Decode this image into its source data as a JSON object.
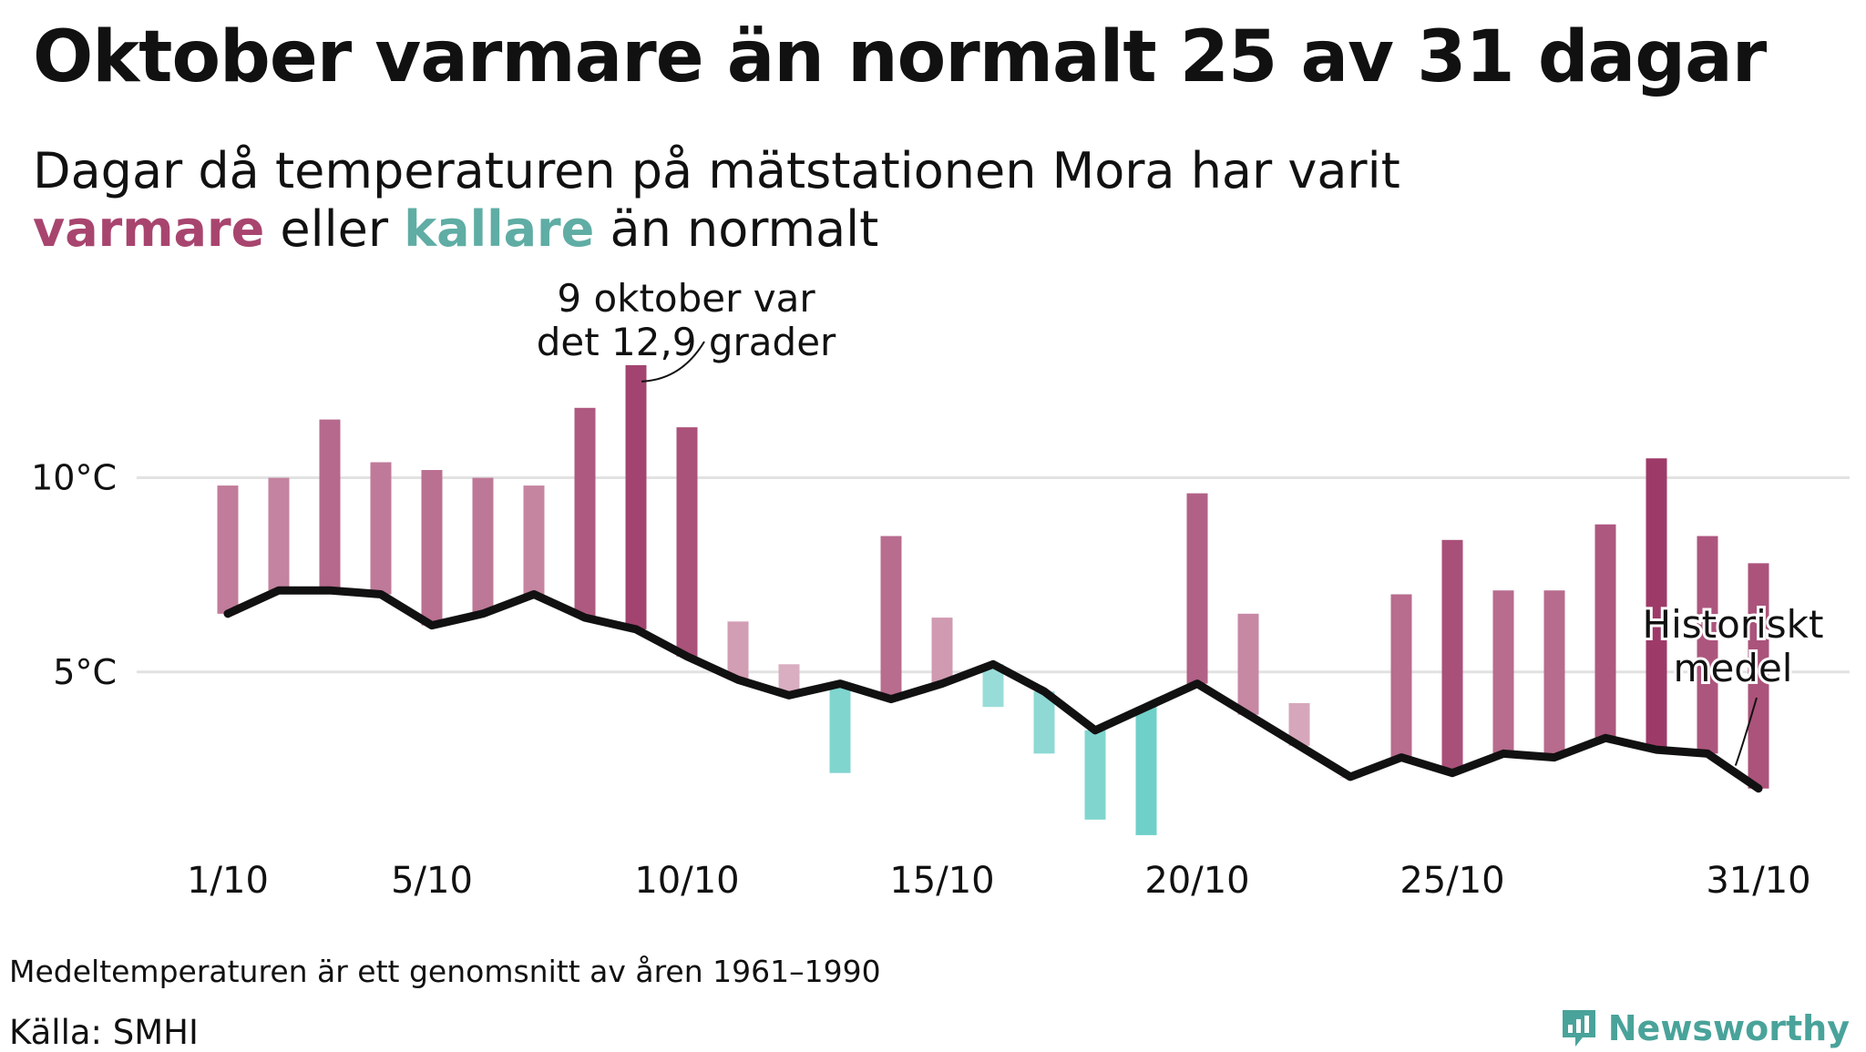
{
  "title": "Oktober varmare än normalt 25 av 31 dagar",
  "subtitle": {
    "line1": "Dagar då temperaturen på mätstationen Mora har varit",
    "warm_word": "varmare",
    "middle_word": "eller",
    "cold_word": "kallare",
    "end_words": "än normalt"
  },
  "footnote": "Medeltemperaturen är ett genomsnitt av åren 1961–1990",
  "source": "Källa: SMHI",
  "brand": "Newsworthy",
  "colors": {
    "warm_dark": "#9e3a68",
    "warm_light": "#e8c9d5",
    "cold_dark": "#6fd0c9",
    "cold_light": "#b8e6e3",
    "line": "#111111",
    "grid": "#e2e2e2",
    "brand": "#49a39a"
  },
  "chart_data": {
    "type": "bar",
    "title": "Oktober varmare än normalt 25 av 31 dagar",
    "xlabel": "",
    "ylabel": "",
    "ylim": [
      -1.5,
      15.5
    ],
    "grid": true,
    "days": [
      1,
      2,
      3,
      4,
      5,
      6,
      7,
      8,
      9,
      10,
      11,
      12,
      13,
      14,
      15,
      16,
      17,
      18,
      19,
      20,
      21,
      22,
      23,
      24,
      25,
      26,
      27,
      28,
      29,
      30,
      31
    ],
    "x_tick_days": [
      1,
      5,
      10,
      15,
      20,
      25,
      31
    ],
    "x_tick_labels": [
      "1/10",
      "5/10",
      "10/10",
      "15/10",
      "20/10",
      "25/10",
      "31/10"
    ],
    "y_ticks": [
      5,
      10
    ],
    "y_tick_labels": [
      "5°C",
      "10°C"
    ],
    "series": [
      {
        "name": "Temperatur",
        "kind": "bar",
        "values": [
          9.8,
          10.0,
          11.5,
          10.4,
          10.2,
          10.0,
          9.8,
          11.8,
          12.9,
          11.3,
          6.3,
          5.2,
          2.4,
          8.5,
          6.4,
          4.1,
          2.9,
          1.2,
          0.8,
          9.6,
          6.5,
          4.2,
          2.3,
          7.0,
          8.4,
          7.1,
          7.1,
          8.8,
          10.5,
          8.5,
          7.8
        ]
      },
      {
        "name": "Historiskt medel",
        "kind": "line",
        "values": [
          6.5,
          7.1,
          7.1,
          7.0,
          6.2,
          6.5,
          7.0,
          6.4,
          6.1,
          5.4,
          4.8,
          4.4,
          4.7,
          4.3,
          4.7,
          5.2,
          4.5,
          3.5,
          4.1,
          4.7,
          3.9,
          3.1,
          2.3,
          2.8,
          2.4,
          2.9,
          2.8,
          3.3,
          3.0,
          2.9,
          2.0
        ]
      }
    ],
    "annotations": [
      {
        "day": 9,
        "lines": [
          "9 oktober var",
          "det 12,9 grader"
        ]
      },
      {
        "day": 31,
        "lines": [
          "Historiskt",
          "medel"
        ]
      }
    ]
  }
}
